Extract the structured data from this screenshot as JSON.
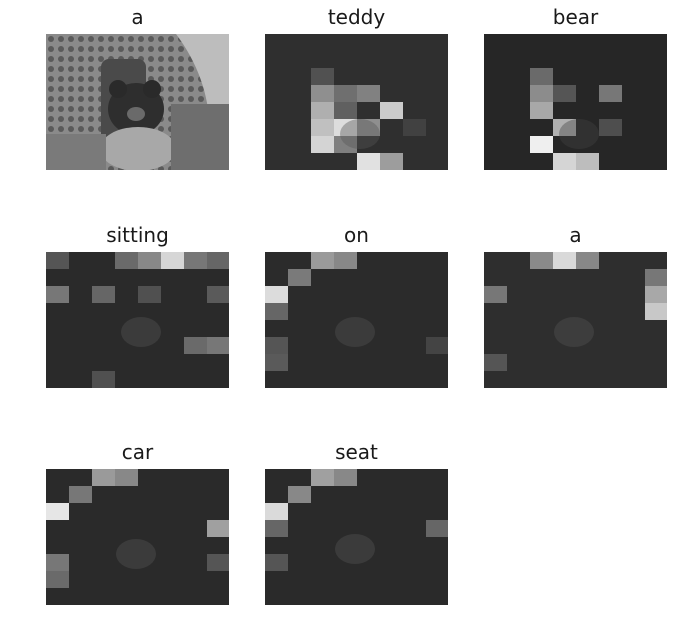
{
  "panels": [
    {
      "word": "a",
      "type": "original"
    },
    {
      "word": "teddy",
      "type": "attention"
    },
    {
      "word": "bear",
      "type": "attention"
    },
    {
      "word": "sitting",
      "type": "attention"
    },
    {
      "word": "on",
      "type": "attention"
    },
    {
      "word": "a",
      "type": "attention"
    },
    {
      "word": "car",
      "type": "attention"
    },
    {
      "word": "seat",
      "type": "attention"
    }
  ]
}
